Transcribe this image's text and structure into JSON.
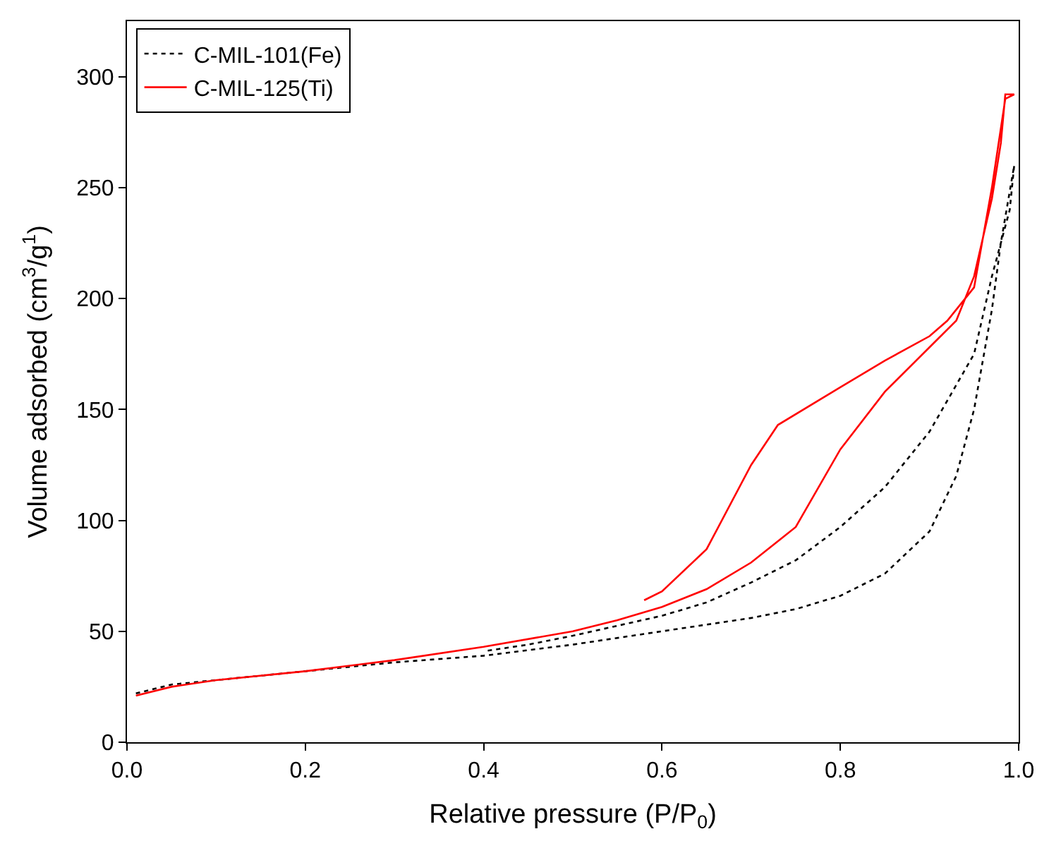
{
  "chart_data": {
    "type": "line",
    "xlabel": "Relative pressure (P/P$_{0}$)",
    "ylabel": "Volume adsorbed (cm$^{3}$/g$^{1}$)",
    "xlim": [
      0,
      1
    ],
    "xticks": [
      {
        "value": 0,
        "label": "0.0"
      },
      {
        "value": 0.2,
        "label": "0.2"
      },
      {
        "value": 0.4,
        "label": "0.4"
      },
      {
        "value": 0.6,
        "label": "0.6"
      },
      {
        "value": 0.8,
        "label": "0.8"
      },
      {
        "value": 1,
        "label": "1.0"
      }
    ],
    "ylim": [
      0,
      325
    ],
    "yticks": [
      0,
      50,
      100,
      150,
      200,
      250,
      300
    ],
    "legend": "top left",
    "marker": "none",
    "series": [
      {
        "name": "C-MIL-101(Fe)",
        "color": "#000000",
        "line_style": "dotted",
        "x": [
          0.01,
          0.05,
          0.1,
          0.2,
          0.3,
          0.4,
          0.5,
          0.6,
          0.7,
          0.75,
          0.8,
          0.85,
          0.9,
          0.93,
          0.95,
          0.97,
          0.98,
          0.995,
          0.99,
          0.97,
          0.95,
          0.9,
          0.85,
          0.8,
          0.75,
          0.7,
          0.65,
          0.6,
          0.5,
          0.45,
          0.4
        ],
        "values": [
          22,
          26,
          28,
          32,
          36,
          39,
          44,
          50,
          56,
          60,
          66,
          76,
          95,
          120,
          150,
          195,
          225,
          260,
          240,
          210,
          175,
          140,
          115,
          97,
          82,
          72,
          63,
          57,
          48,
          44,
          41
        ]
      },
      {
        "name": "C-MIL-125(Ti)",
        "color": "#ff0000",
        "line_style": "solid",
        "x": [
          0.01,
          0.05,
          0.1,
          0.2,
          0.3,
          0.4,
          0.5,
          0.55,
          0.6,
          0.65,
          0.7,
          0.75,
          0.8,
          0.85,
          0.9,
          0.93,
          0.95,
          0.97,
          0.98,
          0.985,
          0.995,
          0.985,
          0.97,
          0.95,
          0.92,
          0.9,
          0.85,
          0.8,
          0.73,
          0.7,
          0.65,
          0.6,
          0.58
        ],
        "values": [
          21,
          25,
          28,
          32,
          37,
          43,
          50,
          55,
          61,
          69,
          81,
          97,
          132,
          158,
          178,
          190,
          210,
          245,
          270,
          292,
          292,
          290,
          250,
          205,
          190,
          183,
          172,
          160,
          143,
          125,
          87,
          68,
          64
        ]
      }
    ]
  }
}
